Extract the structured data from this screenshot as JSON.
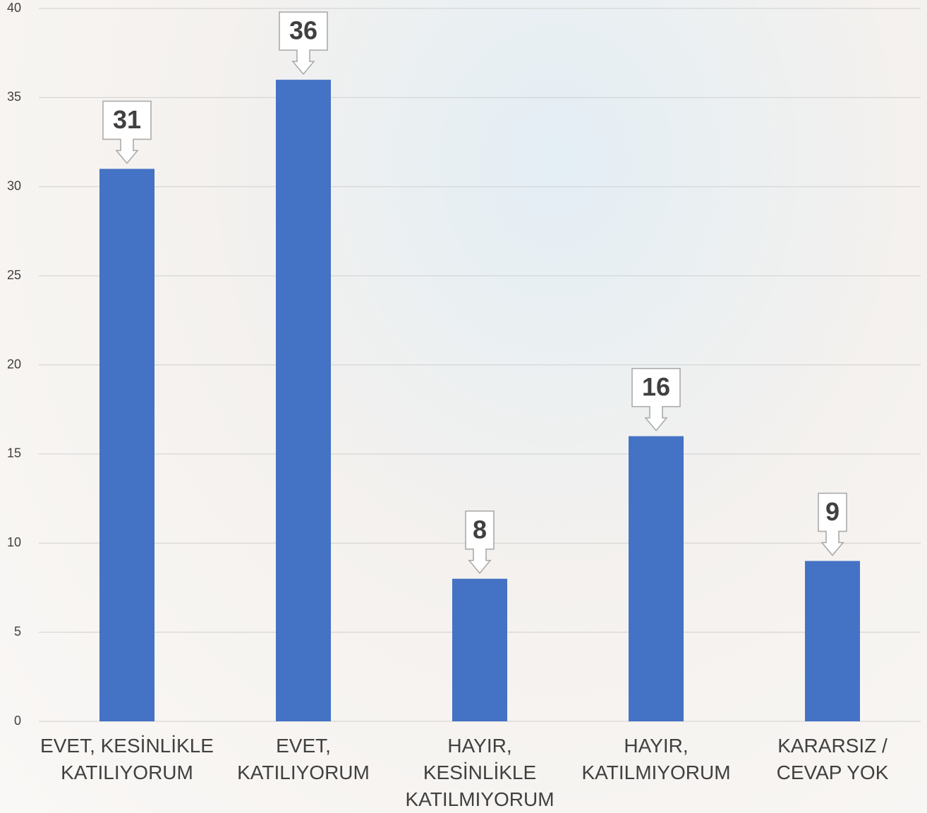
{
  "chart_data": {
    "type": "bar",
    "categories": [
      "EVET, KESİNLİKLE KATILIYORUM",
      "EVET, KATILIYORUM",
      "HAYIR, KESİNLİKLE KATILMIYORUM",
      "HAYIR, KATILMIYORUM",
      "KARARSIZ / CEVAP YOK"
    ],
    "values": [
      31,
      36,
      8,
      16,
      9
    ],
    "color": "#4472c4",
    "ylim": [
      0,
      40
    ],
    "yticks": [
      0,
      5,
      10,
      15,
      20,
      25,
      30,
      35,
      40
    ],
    "grid": true
  }
}
